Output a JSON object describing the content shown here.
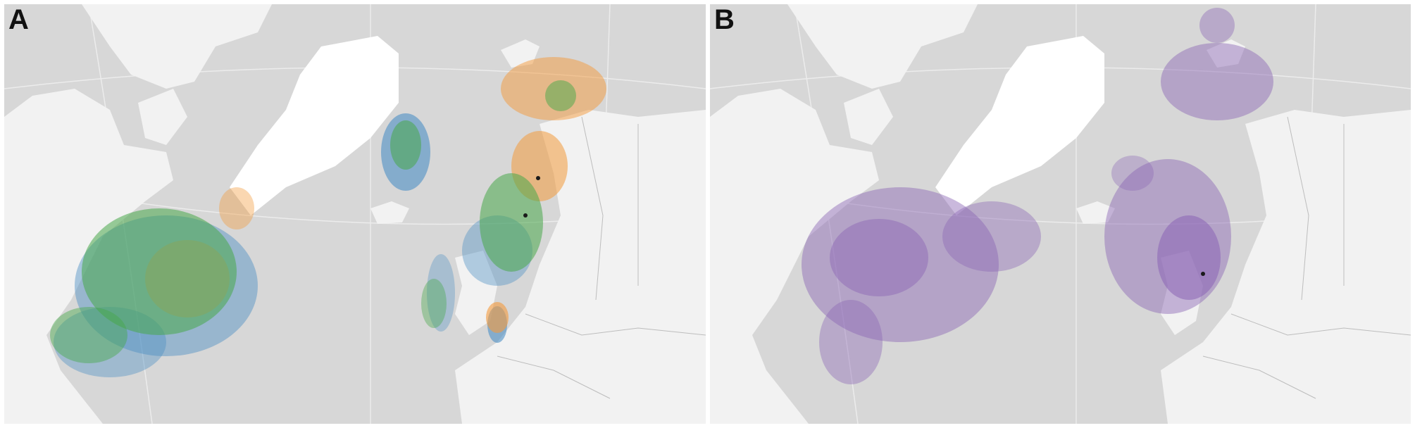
{
  "panels": [
    {
      "label": "A",
      "layers": [
        {
          "name": "blue",
          "color": "#4c8fc4"
        },
        {
          "name": "orange",
          "color": "#f39a3c"
        },
        {
          "name": "green",
          "color": "#48a84a"
        }
      ]
    },
    {
      "label": "B",
      "layers": [
        {
          "name": "purple",
          "color": "#8a64b4"
        }
      ]
    }
  ],
  "colors": {
    "ocean": "#d7d7d7",
    "land": "#f2f2f2",
    "ice": "#ffffff",
    "graticule": "#ececec",
    "border": "#bdbdbd",
    "marker": "#1a1a1a"
  }
}
